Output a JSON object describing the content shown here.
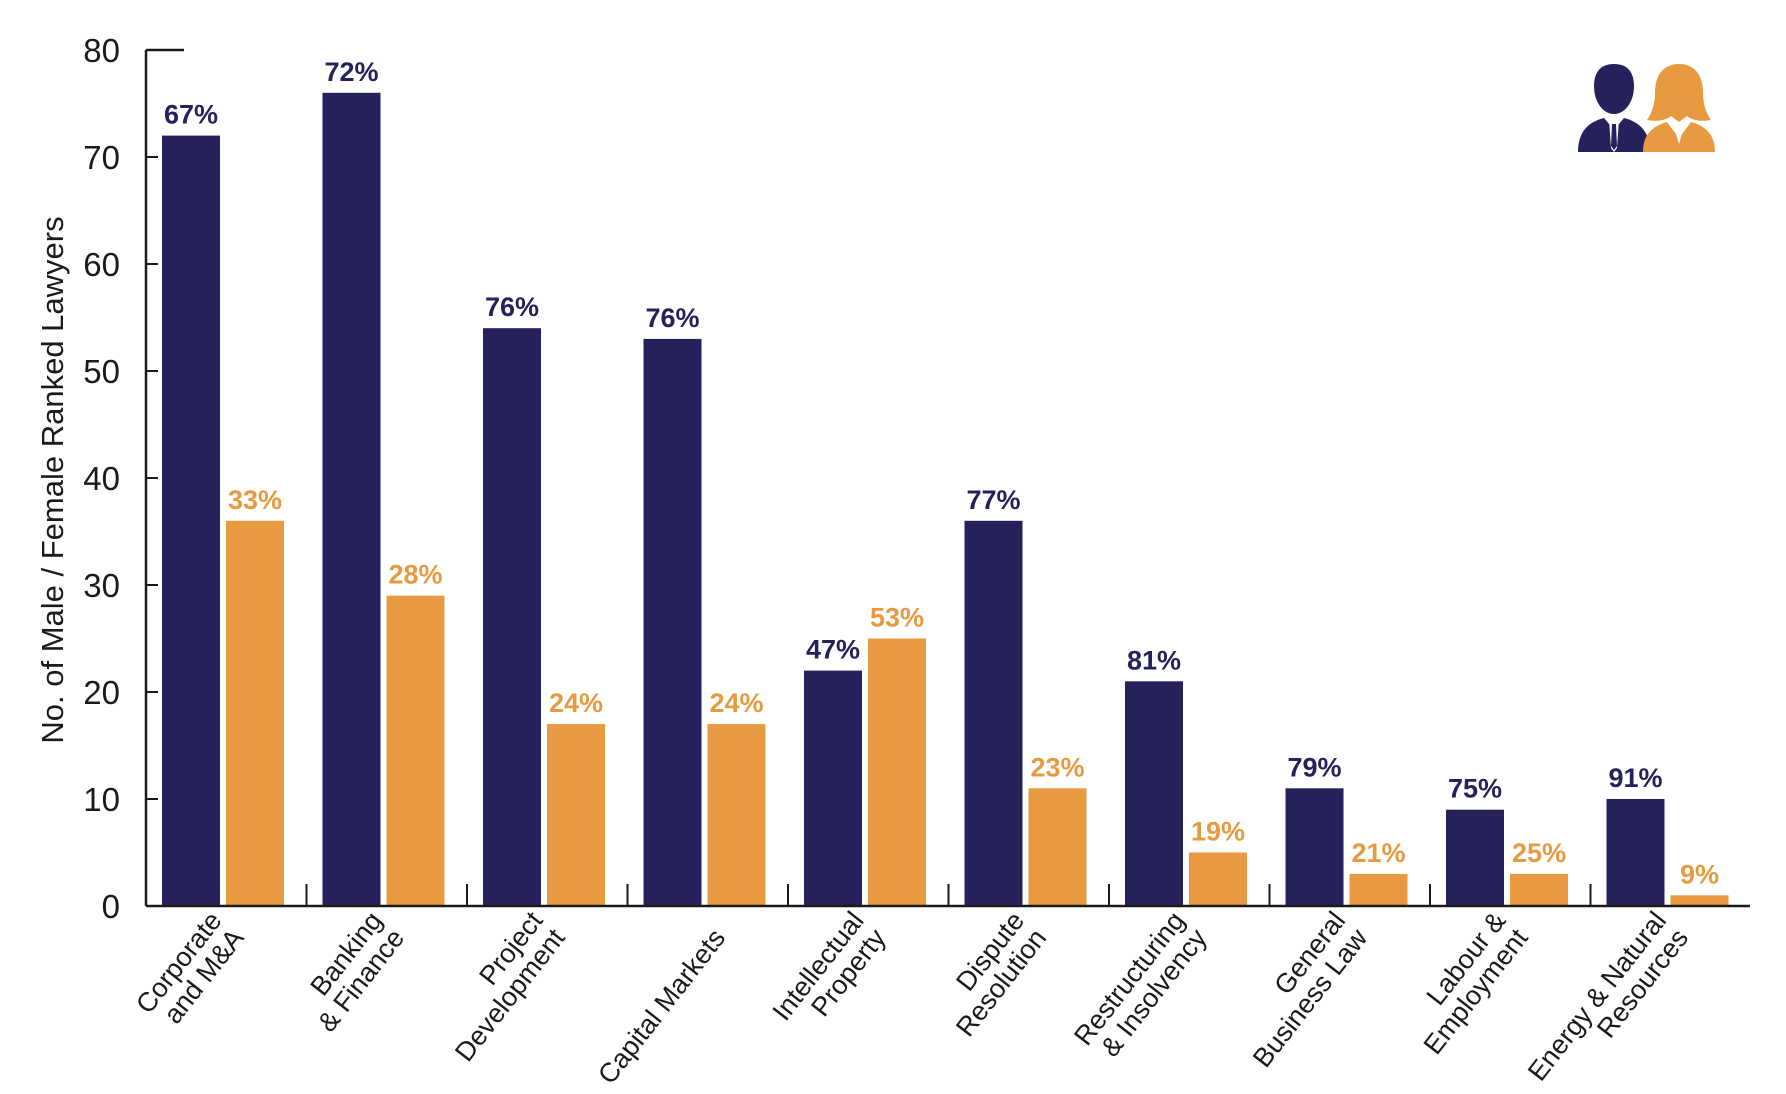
{
  "chart_data": {
    "type": "bar",
    "ylabel": "No. of Male / Female Ranked Lawyers",
    "ylim": [
      0,
      80
    ],
    "yticks": [
      0,
      10,
      20,
      30,
      40,
      50,
      60,
      70,
      80
    ],
    "grid": false,
    "legend": "top-right",
    "legend_icons": [
      "male-person-icon",
      "female-person-icon"
    ],
    "categories": [
      [
        "Corporate",
        "and M&A"
      ],
      [
        "Banking",
        "& Finance"
      ],
      [
        "Project",
        "Development"
      ],
      [
        "Capital Markets"
      ],
      [
        "Intellectual",
        "Property"
      ],
      [
        "Dispute",
        "Resolution"
      ],
      [
        "Restructuring",
        "& Insolvency"
      ],
      [
        "General",
        "Business Law"
      ],
      [
        "Labour &",
        "Employment"
      ],
      [
        "Energy & Natural",
        "Resources"
      ]
    ],
    "series": [
      {
        "color": "#25225b",
        "values": [
          72,
          76,
          54,
          53,
          22,
          36,
          21,
          11,
          9,
          10
        ],
        "labels": [
          "67%",
          "72%",
          "76%",
          "76%",
          "47%",
          "77%",
          "81%",
          "79%",
          "75%",
          "91%"
        ]
      },
      {
        "color": "#e89a40",
        "values": [
          36,
          29,
          17,
          17,
          25,
          11,
          5,
          3,
          3,
          1
        ],
        "labels": [
          "33%",
          "28%",
          "24%",
          "24%",
          "53%",
          "23%",
          "19%",
          "21%",
          "25%",
          "9%"
        ]
      }
    ]
  }
}
